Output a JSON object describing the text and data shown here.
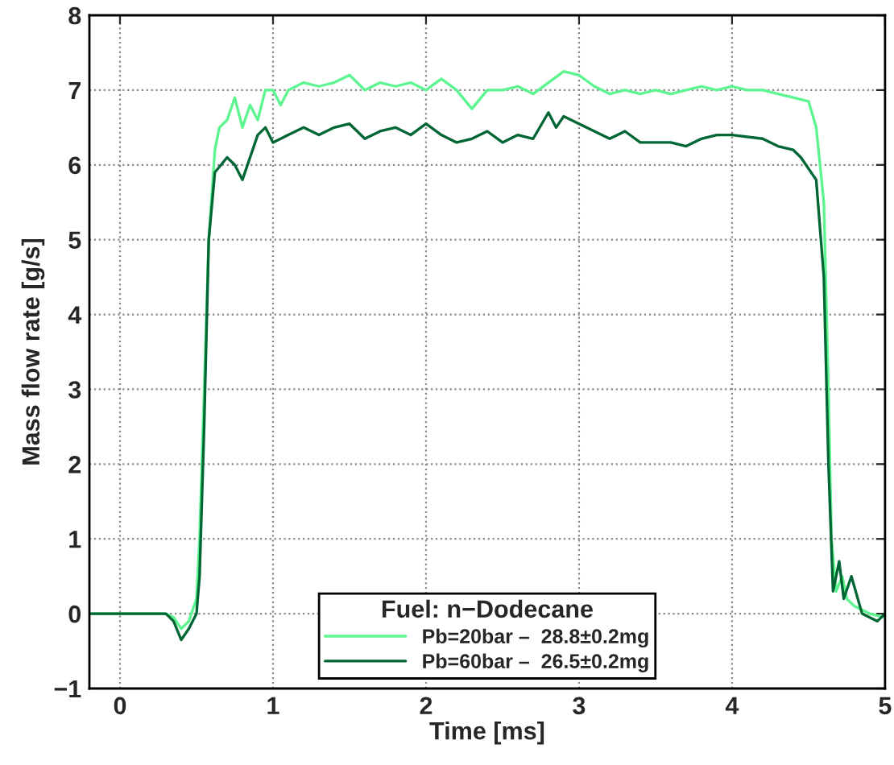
{
  "chart_data": {
    "type": "line",
    "xlabel": "Time [ms]",
    "ylabel": "Mass flow rate [g/s]",
    "legend_title": "Fuel: n−Dodecane",
    "xlim": [
      -0.2,
      5
    ],
    "xticks": [
      0,
      1,
      2,
      3,
      4,
      5
    ],
    "ylim": [
      -1,
      8
    ],
    "yticks": [
      {
        "value": -1,
        "label": "−1"
      },
      0,
      1,
      2,
      3,
      4,
      5,
      6,
      7,
      8
    ],
    "grid": true,
    "legend": "bottom",
    "line_style": "solid",
    "marker": "none",
    "series": [
      {
        "name": "Pb=20bar –  28.8±0.2mg",
        "color": "#5cf58f",
        "x": [
          -0.2,
          0.2,
          0.3,
          0.35,
          0.4,
          0.45,
          0.5,
          0.52,
          0.55,
          0.58,
          0.62,
          0.65,
          0.7,
          0.75,
          0.8,
          0.85,
          0.9,
          0.95,
          1.0,
          1.05,
          1.1,
          1.2,
          1.3,
          1.4,
          1.5,
          1.6,
          1.7,
          1.8,
          1.9,
          2.0,
          2.1,
          2.2,
          2.3,
          2.4,
          2.5,
          2.6,
          2.7,
          2.8,
          2.9,
          3.0,
          3.1,
          3.2,
          3.3,
          3.4,
          3.5,
          3.6,
          3.7,
          3.8,
          3.9,
          4.0,
          4.1,
          4.2,
          4.3,
          4.4,
          4.5,
          4.55,
          4.6,
          4.63,
          4.65,
          4.68,
          4.72,
          4.75,
          4.8,
          4.9,
          5.0
        ],
        "values": [
          0,
          0,
          0,
          -0.05,
          -0.2,
          -0.1,
          0.2,
          1,
          3,
          5,
          6.2,
          6.5,
          6.6,
          6.9,
          6.5,
          6.8,
          6.6,
          7.0,
          7.0,
          6.8,
          7.0,
          7.1,
          7.05,
          7.1,
          7.2,
          7.0,
          7.1,
          7.05,
          7.1,
          7.0,
          7.15,
          7.0,
          6.75,
          7.0,
          7.0,
          7.05,
          6.95,
          7.1,
          7.25,
          7.2,
          7.05,
          6.95,
          7.0,
          6.95,
          7.0,
          6.95,
          7.0,
          7.05,
          7.0,
          7.05,
          7.0,
          7.0,
          6.95,
          6.9,
          6.85,
          6.5,
          5.5,
          3,
          1,
          0.3,
          0.5,
          0.2,
          0.1,
          0.0,
          -0.05
        ]
      },
      {
        "name": "Pb=60bar –  26.5±0.2mg",
        "color": "#006633",
        "x": [
          -0.2,
          0.2,
          0.3,
          0.35,
          0.4,
          0.45,
          0.5,
          0.52,
          0.55,
          0.58,
          0.62,
          0.7,
          0.75,
          0.8,
          0.85,
          0.9,
          0.95,
          1.0,
          1.1,
          1.2,
          1.3,
          1.4,
          1.5,
          1.6,
          1.7,
          1.8,
          1.9,
          2.0,
          2.1,
          2.2,
          2.3,
          2.4,
          2.5,
          2.6,
          2.7,
          2.8,
          2.85,
          2.9,
          3.0,
          3.1,
          3.2,
          3.3,
          3.4,
          3.5,
          3.6,
          3.7,
          3.8,
          3.9,
          4.0,
          4.2,
          4.3,
          4.4,
          4.45,
          4.55,
          4.6,
          4.63,
          4.66,
          4.7,
          4.73,
          4.78,
          4.85,
          4.95,
          5.0
        ],
        "values": [
          0,
          0,
          0,
          -0.1,
          -0.35,
          -0.2,
          0.0,
          0.5,
          2.5,
          5,
          5.9,
          6.1,
          6.0,
          5.8,
          6.1,
          6.4,
          6.5,
          6.3,
          6.4,
          6.5,
          6.4,
          6.5,
          6.55,
          6.35,
          6.45,
          6.5,
          6.4,
          6.55,
          6.4,
          6.3,
          6.35,
          6.45,
          6.3,
          6.4,
          6.35,
          6.7,
          6.5,
          6.65,
          6.55,
          6.45,
          6.35,
          6.45,
          6.3,
          6.3,
          6.3,
          6.25,
          6.35,
          6.4,
          6.4,
          6.35,
          6.25,
          6.2,
          6.1,
          5.8,
          4.5,
          2,
          0.3,
          0.7,
          0.2,
          0.5,
          0.0,
          -0.1,
          0.0
        ]
      }
    ]
  }
}
